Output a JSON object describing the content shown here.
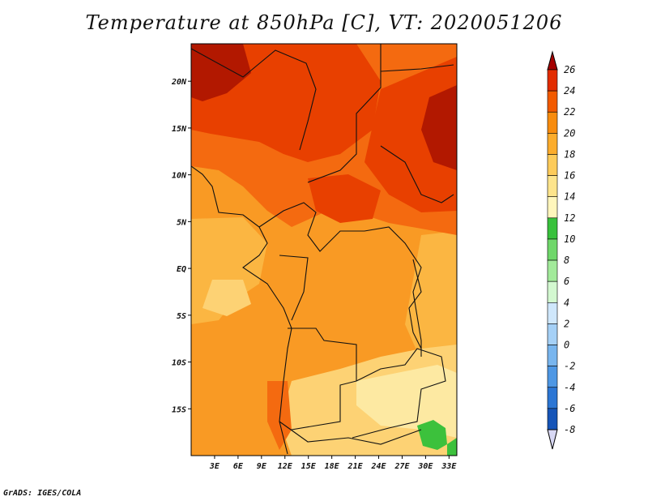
{
  "title": "Temperature at 850hPa [C], VT: 2020051206",
  "credit": "GrADS: IGES/COLA",
  "map": {
    "lon_range": [
      0,
      34
    ],
    "lat_range": [
      -20,
      24
    ],
    "lat_ticks": [
      {
        "value": 20,
        "label": "20N"
      },
      {
        "value": 15,
        "label": "15N"
      },
      {
        "value": 10,
        "label": "10N"
      },
      {
        "value": 5,
        "label": "5N"
      },
      {
        "value": 0,
        "label": "EQ"
      },
      {
        "value": -5,
        "label": "5S"
      },
      {
        "value": -10,
        "label": "10S"
      },
      {
        "value": -15,
        "label": "15S"
      }
    ],
    "lon_ticks": [
      {
        "value": 3,
        "label": "3E"
      },
      {
        "value": 6,
        "label": "6E"
      },
      {
        "value": 9,
        "label": "9E"
      },
      {
        "value": 12,
        "label": "12E"
      },
      {
        "value": 15,
        "label": "15E"
      },
      {
        "value": 18,
        "label": "18E"
      },
      {
        "value": 21,
        "label": "21E"
      },
      {
        "value": 24,
        "label": "24E"
      },
      {
        "value": 27,
        "label": "27E"
      },
      {
        "value": 30,
        "label": "30E"
      },
      {
        "value": 33,
        "label": "33E"
      }
    ]
  },
  "colorbar": {
    "levels": [
      {
        "label": "26",
        "color": "#a50000"
      },
      {
        "label": "24",
        "color": "#e22c00"
      },
      {
        "label": "22",
        "color": "#f25a00"
      },
      {
        "label": "20",
        "color": "#f88c0e"
      },
      {
        "label": "18",
        "color": "#fbac2c"
      },
      {
        "label": "16",
        "color": "#fdcb5a"
      },
      {
        "label": "14",
        "color": "#fde48c"
      },
      {
        "label": "12",
        "color": "#fff6bc"
      },
      {
        "label": "10",
        "color": "#38c13c"
      },
      {
        "label": "8",
        "color": "#6fd76a"
      },
      {
        "label": "6",
        "color": "#a2ea9a"
      },
      {
        "label": "4",
        "color": "#d3f8d0"
      },
      {
        "label": "2",
        "color": "#cfe7fb"
      },
      {
        "label": "0",
        "color": "#a5d0f6"
      },
      {
        "label": "-2",
        "color": "#78b5ee"
      },
      {
        "label": "-4",
        "color": "#4e97e4"
      },
      {
        "label": "-6",
        "color": "#2c76d4"
      },
      {
        "label": "-8",
        "color": "#1655b8"
      }
    ],
    "below_color": "#0a1272",
    "under_color": "#d8d8f4"
  },
  "colors": {
    "t26": "#b21800",
    "t24": "#e84000",
    "t22": "#f46a10",
    "t20": "#f99a24",
    "t18": "#fbb642",
    "t16": "#fdd274",
    "t14": "#fde9a2",
    "green": "#3cc13c"
  }
}
